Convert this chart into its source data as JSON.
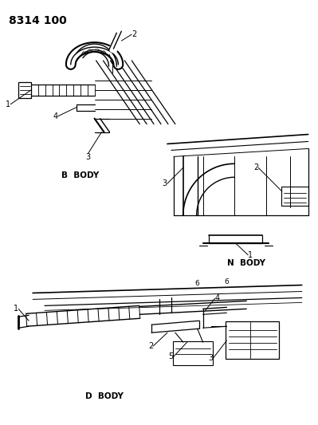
{
  "title": "8314 100",
  "background_color": "#ffffff",
  "line_color": "#000000",
  "text_color": "#000000",
  "b_body_label": "B  BODY",
  "n_body_label": "N  BODY",
  "d_body_label": "D  BODY",
  "title_fontsize": 10,
  "label_fontsize": 7.5,
  "num_fontsize": 7
}
